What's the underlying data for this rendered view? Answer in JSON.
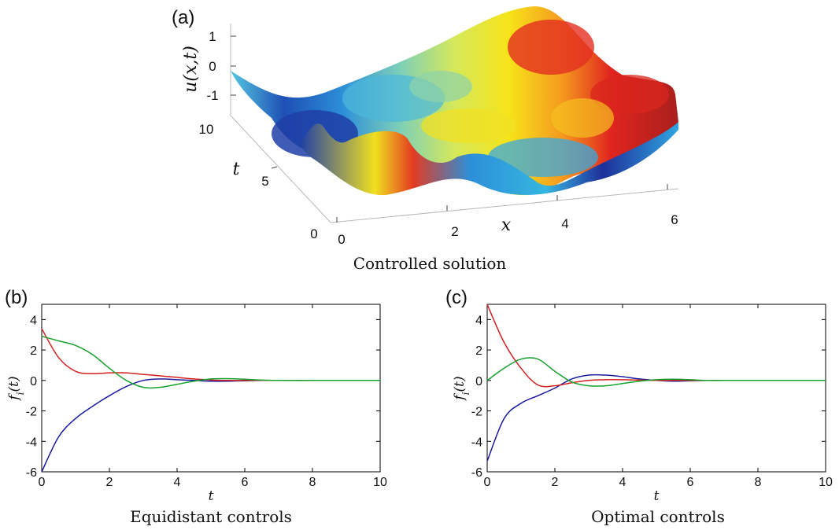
{
  "figure": {
    "panel_a": {
      "label": "(a)",
      "caption": "Controlled solution",
      "zlabel": "u(x,t)",
      "xlabel": "x",
      "ylabel": "t",
      "z_ticks": [
        "1",
        "0",
        "-1"
      ],
      "t_ticks": [
        "10",
        "5",
        "0"
      ],
      "x_ticks": [
        "0",
        "2",
        "4",
        "6"
      ]
    },
    "panel_b": {
      "label": "(b)",
      "caption": "Equidistant controls"
    },
    "panel_c": {
      "label": "(c)",
      "caption": "Optimal controls"
    }
  },
  "chart_data": [
    {
      "type": "surface",
      "title": "Controlled solution",
      "xlabel": "x",
      "ylabel": "t",
      "zlabel": "u(x,t)",
      "xlim": [
        0,
        6.28
      ],
      "ylim": [
        0,
        10
      ],
      "zlim": [
        -1.5,
        1.5
      ],
      "colormap": "jet",
      "x": [
        0,
        0.785,
        1.571,
        2.356,
        3.142,
        3.927,
        4.712,
        5.498,
        6.283
      ],
      "t": [
        0,
        5,
        10
      ],
      "z_t0": [
        0.2,
        -0.6,
        0.7,
        -0.2,
        -1.0,
        -0.3,
        0.4,
        1.0,
        0.7
      ],
      "z_t5": [
        -0.2,
        -0.9,
        -0.4,
        0.1,
        0.2,
        0.4,
        0.8,
        1.0,
        0.8
      ],
      "z_t10": [
        0.0,
        -0.2,
        -0.3,
        0.0,
        0.6,
        1.2,
        1.3,
        0.8,
        0.6
      ]
    },
    {
      "type": "line",
      "title": "Equidistant controls",
      "xlabel": "t",
      "ylabel": "f_i(t)",
      "xlim": [
        0,
        10
      ],
      "ylim": [
        -6,
        5
      ],
      "x_ticks": [
        0,
        2,
        4,
        6,
        8,
        10
      ],
      "y_ticks": [
        4,
        2,
        0,
        -2,
        -4,
        -6
      ],
      "x": [
        0,
        0.5,
        1,
        1.5,
        2,
        2.5,
        3,
        3.5,
        4,
        4.5,
        5,
        5.5,
        6,
        6.5,
        7,
        8,
        9,
        10
      ],
      "series": [
        {
          "color": "#1a1aa0",
          "values": [
            -6.0,
            -3.7,
            -2.5,
            -1.7,
            -1.0,
            -0.4,
            0.0,
            0.1,
            0.05,
            0.0,
            -0.05,
            -0.05,
            -0.02,
            0.0,
            0.0,
            0.0,
            0.0,
            0.0
          ]
        },
        {
          "color": "#d42020",
          "values": [
            3.4,
            1.5,
            0.6,
            0.45,
            0.5,
            0.5,
            0.4,
            0.3,
            0.2,
            0.1,
            0.03,
            0.0,
            0.0,
            0.0,
            0.0,
            0.0,
            0.0,
            0.0
          ]
        },
        {
          "color": "#16a02e",
          "values": [
            2.9,
            2.6,
            2.3,
            1.7,
            0.8,
            0.0,
            -0.45,
            -0.45,
            -0.25,
            -0.05,
            0.1,
            0.12,
            0.08,
            0.02,
            0.0,
            0.0,
            0.0,
            0.0
          ]
        }
      ]
    },
    {
      "type": "line",
      "title": "Optimal controls",
      "xlabel": "t",
      "ylabel": "f_i(t)",
      "xlim": [
        0,
        10
      ],
      "ylim": [
        -6,
        5
      ],
      "x_ticks": [
        0,
        2,
        4,
        6,
        8,
        10
      ],
      "y_ticks": [
        4,
        2,
        0,
        -2,
        -4,
        -6
      ],
      "x": [
        0,
        0.5,
        1,
        1.5,
        2,
        2.5,
        3,
        3.5,
        4,
        4.5,
        5,
        5.5,
        6,
        6.5,
        7,
        8,
        9,
        10
      ],
      "series": [
        {
          "color": "#1a1aa0",
          "values": [
            -5.3,
            -2.5,
            -1.5,
            -1.0,
            -0.5,
            0.1,
            0.35,
            0.35,
            0.25,
            0.1,
            0.0,
            -0.05,
            -0.02,
            0.0,
            0.0,
            0.0,
            0.0,
            0.0
          ]
        },
        {
          "color": "#d42020",
          "values": [
            5.0,
            2.5,
            0.8,
            -0.3,
            -0.35,
            -0.15,
            0.0,
            0.05,
            0.05,
            0.02,
            0.0,
            0.0,
            0.0,
            0.0,
            0.0,
            0.0,
            0.0,
            0.0
          ]
        },
        {
          "color": "#16a02e",
          "values": [
            0.0,
            0.8,
            1.4,
            1.4,
            0.6,
            -0.1,
            -0.35,
            -0.35,
            -0.2,
            -0.05,
            0.05,
            0.08,
            0.05,
            0.0,
            0.0,
            0.0,
            0.0,
            0.0
          ]
        }
      ]
    }
  ]
}
